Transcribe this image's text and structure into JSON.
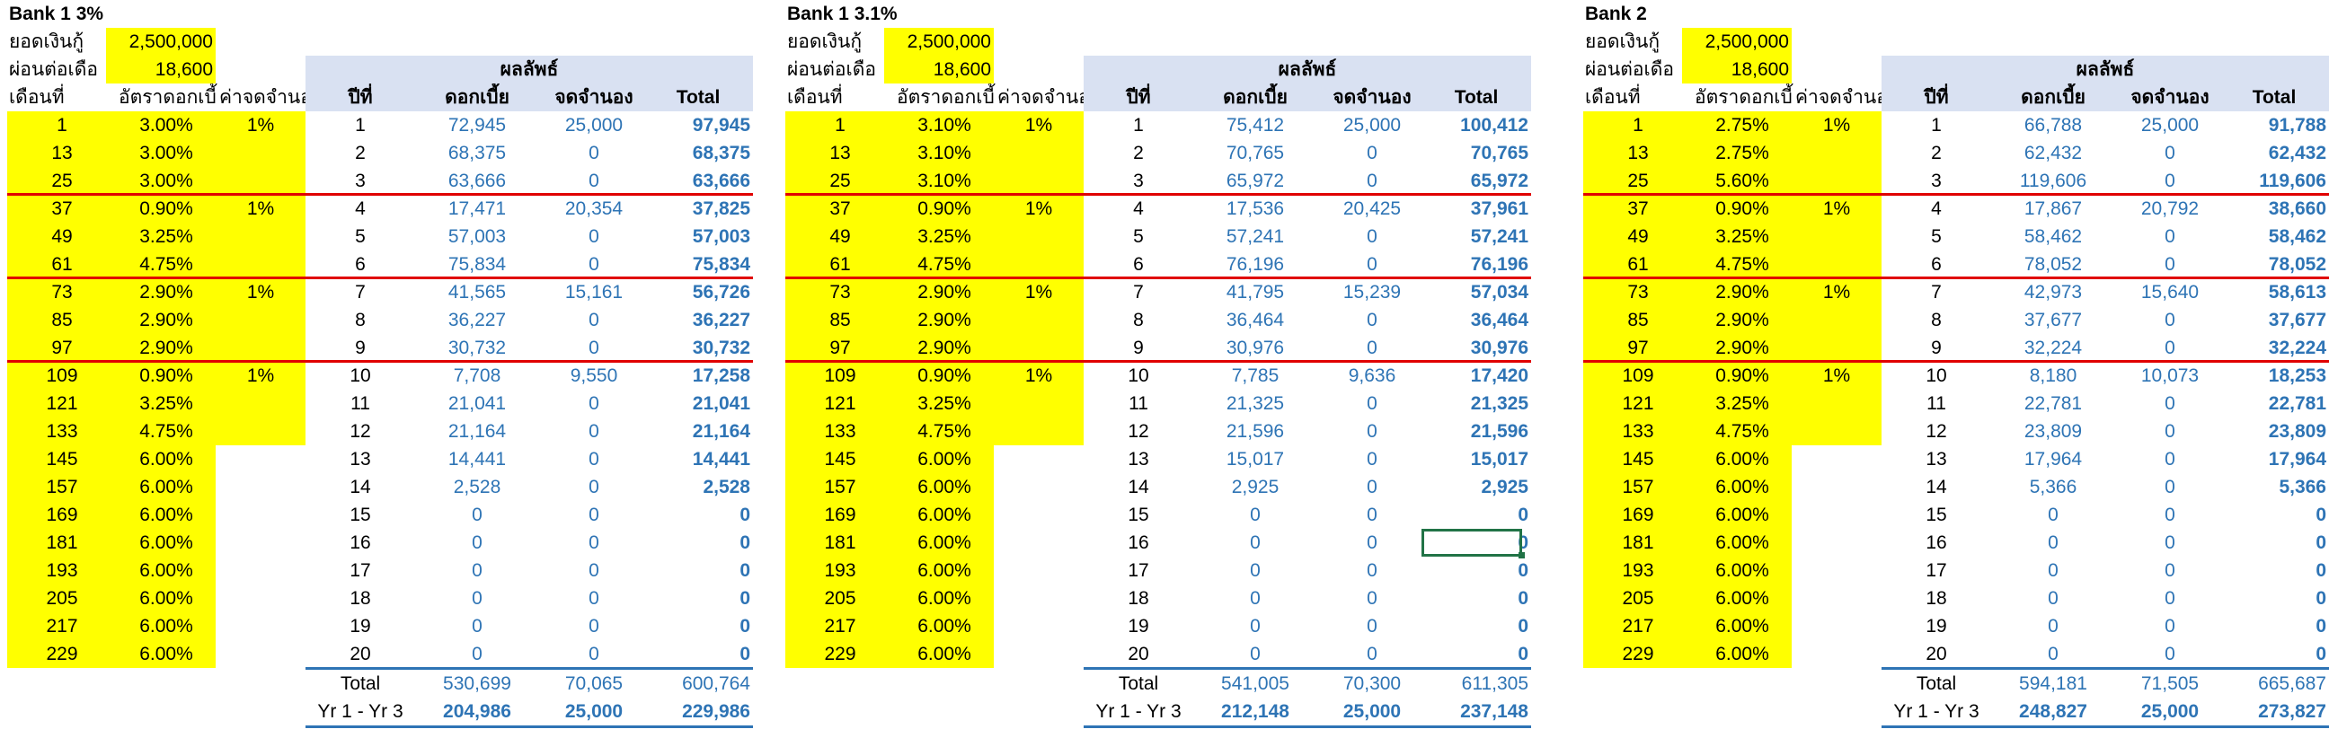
{
  "blocks": [
    {
      "title": "Bank 1 3%",
      "loan_label": "ยอดเงินกู้",
      "loan_value": "2,500,000",
      "pay_label": "ผ่อนต่อเดือ",
      "pay_value": "18,600",
      "result_header": "ผลลัพธ์",
      "col_month": "เดือนที่",
      "col_rate": "อัตราดอกเบี้",
      "col_fee": "ค่าจดจำนอง",
      "col_year": "ปีที่",
      "col_interest": "ดอกเบี้ย",
      "col_mortgage": "จดจำนอง",
      "col_total": "Total",
      "rate_rows": [
        {
          "month": "1",
          "rate": "3.00%",
          "fee": "1%"
        },
        {
          "month": "13",
          "rate": "3.00%",
          "fee": ""
        },
        {
          "month": "25",
          "rate": "3.00%",
          "fee": ""
        },
        {
          "month": "37",
          "rate": "0.90%",
          "fee": "1%"
        },
        {
          "month": "49",
          "rate": "3.25%",
          "fee": ""
        },
        {
          "month": "61",
          "rate": "4.75%",
          "fee": ""
        },
        {
          "month": "73",
          "rate": "2.90%",
          "fee": "1%"
        },
        {
          "month": "85",
          "rate": "2.90%",
          "fee": ""
        },
        {
          "month": "97",
          "rate": "2.90%",
          "fee": ""
        },
        {
          "month": "109",
          "rate": "0.90%",
          "fee": "1%"
        },
        {
          "month": "121",
          "rate": "3.25%",
          "fee": ""
        },
        {
          "month": "133",
          "rate": "4.75%",
          "fee": ""
        },
        {
          "month": "145",
          "rate": "6.00%",
          "fee": ""
        },
        {
          "month": "157",
          "rate": "6.00%",
          "fee": ""
        },
        {
          "month": "169",
          "rate": "6.00%",
          "fee": ""
        },
        {
          "month": "181",
          "rate": "6.00%",
          "fee": ""
        },
        {
          "month": "193",
          "rate": "6.00%",
          "fee": ""
        },
        {
          "month": "205",
          "rate": "6.00%",
          "fee": ""
        },
        {
          "month": "217",
          "rate": "6.00%",
          "fee": ""
        },
        {
          "month": "229",
          "rate": "6.00%",
          "fee": ""
        }
      ],
      "year_rows": [
        {
          "year": "1",
          "interest": "72,945",
          "mortgage": "25,000",
          "total": "97,945"
        },
        {
          "year": "2",
          "interest": "68,375",
          "mortgage": "0",
          "total": "68,375"
        },
        {
          "year": "3",
          "interest": "63,666",
          "mortgage": "0",
          "total": "63,666"
        },
        {
          "year": "4",
          "interest": "17,471",
          "mortgage": "20,354",
          "total": "37,825"
        },
        {
          "year": "5",
          "interest": "57,003",
          "mortgage": "0",
          "total": "57,003"
        },
        {
          "year": "6",
          "interest": "75,834",
          "mortgage": "0",
          "total": "75,834"
        },
        {
          "year": "7",
          "interest": "41,565",
          "mortgage": "15,161",
          "total": "56,726"
        },
        {
          "year": "8",
          "interest": "36,227",
          "mortgage": "0",
          "total": "36,227"
        },
        {
          "year": "9",
          "interest": "30,732",
          "mortgage": "0",
          "total": "30,732"
        },
        {
          "year": "10",
          "interest": "7,708",
          "mortgage": "9,550",
          "total": "17,258"
        },
        {
          "year": "11",
          "interest": "21,041",
          "mortgage": "0",
          "total": "21,041"
        },
        {
          "year": "12",
          "interest": "21,164",
          "mortgage": "0",
          "total": "21,164"
        },
        {
          "year": "13",
          "interest": "14,441",
          "mortgage": "0",
          "total": "14,441"
        },
        {
          "year": "14",
          "interest": "2,528",
          "mortgage": "0",
          "total": "2,528"
        },
        {
          "year": "15",
          "interest": "0",
          "mortgage": "0",
          "total": "0"
        },
        {
          "year": "16",
          "interest": "0",
          "mortgage": "0",
          "total": "0"
        },
        {
          "year": "17",
          "interest": "0",
          "mortgage": "0",
          "total": "0"
        },
        {
          "year": "18",
          "interest": "0",
          "mortgage": "0",
          "total": "0"
        },
        {
          "year": "19",
          "interest": "0",
          "mortgage": "0",
          "total": "0"
        },
        {
          "year": "20",
          "interest": "0",
          "mortgage": "0",
          "total": "0"
        }
      ],
      "total_row": {
        "label": "Total",
        "interest": "530,699",
        "mortgage": "70,065",
        "total": "600,764"
      },
      "yr_row": {
        "label": "Yr 1 - Yr 3",
        "interest": "204,986",
        "mortgage": "25,000",
        "total": "229,986"
      }
    },
    {
      "title": "Bank 1 3.1%",
      "loan_label": "ยอดเงินกู้",
      "loan_value": "2,500,000",
      "pay_label": "ผ่อนต่อเดือ",
      "pay_value": "18,600",
      "result_header": "ผลลัพธ์",
      "col_month": "เดือนที่",
      "col_rate": "อัตราดอกเบี้",
      "col_fee": "ค่าจดจำนอง",
      "col_year": "ปีที่",
      "col_interest": "ดอกเบี้ย",
      "col_mortgage": "จดจำนอง",
      "col_total": "Total",
      "rate_rows": [
        {
          "month": "1",
          "rate": "3.10%",
          "fee": "1%"
        },
        {
          "month": "13",
          "rate": "3.10%",
          "fee": ""
        },
        {
          "month": "25",
          "rate": "3.10%",
          "fee": ""
        },
        {
          "month": "37",
          "rate": "0.90%",
          "fee": "1%"
        },
        {
          "month": "49",
          "rate": "3.25%",
          "fee": ""
        },
        {
          "month": "61",
          "rate": "4.75%",
          "fee": ""
        },
        {
          "month": "73",
          "rate": "2.90%",
          "fee": "1%"
        },
        {
          "month": "85",
          "rate": "2.90%",
          "fee": ""
        },
        {
          "month": "97",
          "rate": "2.90%",
          "fee": ""
        },
        {
          "month": "109",
          "rate": "0.90%",
          "fee": "1%"
        },
        {
          "month": "121",
          "rate": "3.25%",
          "fee": ""
        },
        {
          "month": "133",
          "rate": "4.75%",
          "fee": ""
        },
        {
          "month": "145",
          "rate": "6.00%",
          "fee": ""
        },
        {
          "month": "157",
          "rate": "6.00%",
          "fee": ""
        },
        {
          "month": "169",
          "rate": "6.00%",
          "fee": ""
        },
        {
          "month": "181",
          "rate": "6.00%",
          "fee": ""
        },
        {
          "month": "193",
          "rate": "6.00%",
          "fee": ""
        },
        {
          "month": "205",
          "rate": "6.00%",
          "fee": ""
        },
        {
          "month": "217",
          "rate": "6.00%",
          "fee": ""
        },
        {
          "month": "229",
          "rate": "6.00%",
          "fee": ""
        }
      ],
      "year_rows": [
        {
          "year": "1",
          "interest": "75,412",
          "mortgage": "25,000",
          "total": "100,412"
        },
        {
          "year": "2",
          "interest": "70,765",
          "mortgage": "0",
          "total": "70,765"
        },
        {
          "year": "3",
          "interest": "65,972",
          "mortgage": "0",
          "total": "65,972"
        },
        {
          "year": "4",
          "interest": "17,536",
          "mortgage": "20,425",
          "total": "37,961"
        },
        {
          "year": "5",
          "interest": "57,241",
          "mortgage": "0",
          "total": "57,241"
        },
        {
          "year": "6",
          "interest": "76,196",
          "mortgage": "0",
          "total": "76,196"
        },
        {
          "year": "7",
          "interest": "41,795",
          "mortgage": "15,239",
          "total": "57,034"
        },
        {
          "year": "8",
          "interest": "36,464",
          "mortgage": "0",
          "total": "36,464"
        },
        {
          "year": "9",
          "interest": "30,976",
          "mortgage": "0",
          "total": "30,976"
        },
        {
          "year": "10",
          "interest": "7,785",
          "mortgage": "9,636",
          "total": "17,420"
        },
        {
          "year": "11",
          "interest": "21,325",
          "mortgage": "0",
          "total": "21,325"
        },
        {
          "year": "12",
          "interest": "21,596",
          "mortgage": "0",
          "total": "21,596"
        },
        {
          "year": "13",
          "interest": "15,017",
          "mortgage": "0",
          "total": "15,017"
        },
        {
          "year": "14",
          "interest": "2,925",
          "mortgage": "0",
          "total": "2,925"
        },
        {
          "year": "15",
          "interest": "0",
          "mortgage": "0",
          "total": "0"
        },
        {
          "year": "16",
          "interest": "0",
          "mortgage": "0",
          "total": "0"
        },
        {
          "year": "17",
          "interest": "0",
          "mortgage": "0",
          "total": "0"
        },
        {
          "year": "18",
          "interest": "0",
          "mortgage": "0",
          "total": "0"
        },
        {
          "year": "19",
          "interest": "0",
          "mortgage": "0",
          "total": "0"
        },
        {
          "year": "20",
          "interest": "0",
          "mortgage": "0",
          "total": "0"
        }
      ],
      "total_row": {
        "label": "Total",
        "interest": "541,005",
        "mortgage": "70,300",
        "total": "611,305"
      },
      "yr_row": {
        "label": "Yr 1 - Yr 3",
        "interest": "212,148",
        "mortgage": "25,000",
        "total": "237,148"
      }
    },
    {
      "title": "Bank 2",
      "loan_label": "ยอดเงินกู้",
      "loan_value": "2,500,000",
      "pay_label": "ผ่อนต่อเดือ",
      "pay_value": "18,600",
      "result_header": "ผลลัพธ์",
      "col_month": "เดือนที่",
      "col_rate": "อัตราดอกเบี้",
      "col_fee": "ค่าจดจำนอง",
      "col_year": "ปีที่",
      "col_interest": "ดอกเบี้ย",
      "col_mortgage": "จดจำนอง",
      "col_total": "Total",
      "rate_rows": [
        {
          "month": "1",
          "rate": "2.75%",
          "fee": "1%"
        },
        {
          "month": "13",
          "rate": "2.75%",
          "fee": ""
        },
        {
          "month": "25",
          "rate": "5.60%",
          "fee": ""
        },
        {
          "month": "37",
          "rate": "0.90%",
          "fee": "1%"
        },
        {
          "month": "49",
          "rate": "3.25%",
          "fee": ""
        },
        {
          "month": "61",
          "rate": "4.75%",
          "fee": ""
        },
        {
          "month": "73",
          "rate": "2.90%",
          "fee": "1%"
        },
        {
          "month": "85",
          "rate": "2.90%",
          "fee": ""
        },
        {
          "month": "97",
          "rate": "2.90%",
          "fee": ""
        },
        {
          "month": "109",
          "rate": "0.90%",
          "fee": "1%"
        },
        {
          "month": "121",
          "rate": "3.25%",
          "fee": ""
        },
        {
          "month": "133",
          "rate": "4.75%",
          "fee": ""
        },
        {
          "month": "145",
          "rate": "6.00%",
          "fee": ""
        },
        {
          "month": "157",
          "rate": "6.00%",
          "fee": ""
        },
        {
          "month": "169",
          "rate": "6.00%",
          "fee": ""
        },
        {
          "month": "181",
          "rate": "6.00%",
          "fee": ""
        },
        {
          "month": "193",
          "rate": "6.00%",
          "fee": ""
        },
        {
          "month": "205",
          "rate": "6.00%",
          "fee": ""
        },
        {
          "month": "217",
          "rate": "6.00%",
          "fee": ""
        },
        {
          "month": "229",
          "rate": "6.00%",
          "fee": ""
        }
      ],
      "year_rows": [
        {
          "year": "1",
          "interest": "66,788",
          "mortgage": "25,000",
          "total": "91,788"
        },
        {
          "year": "2",
          "interest": "62,432",
          "mortgage": "0",
          "total": "62,432"
        },
        {
          "year": "3",
          "interest": "119,606",
          "mortgage": "0",
          "total": "119,606"
        },
        {
          "year": "4",
          "interest": "17,867",
          "mortgage": "20,792",
          "total": "38,660"
        },
        {
          "year": "5",
          "interest": "58,462",
          "mortgage": "0",
          "total": "58,462"
        },
        {
          "year": "6",
          "interest": "78,052",
          "mortgage": "0",
          "total": "78,052"
        },
        {
          "year": "7",
          "interest": "42,973",
          "mortgage": "15,640",
          "total": "58,613"
        },
        {
          "year": "8",
          "interest": "37,677",
          "mortgage": "0",
          "total": "37,677"
        },
        {
          "year": "9",
          "interest": "32,224",
          "mortgage": "0",
          "total": "32,224"
        },
        {
          "year": "10",
          "interest": "8,180",
          "mortgage": "10,073",
          "total": "18,253"
        },
        {
          "year": "11",
          "interest": "22,781",
          "mortgage": "0",
          "total": "22,781"
        },
        {
          "year": "12",
          "interest": "23,809",
          "mortgage": "0",
          "total": "23,809"
        },
        {
          "year": "13",
          "interest": "17,964",
          "mortgage": "0",
          "total": "17,964"
        },
        {
          "year": "14",
          "interest": "5,366",
          "mortgage": "0",
          "total": "5,366"
        },
        {
          "year": "15",
          "interest": "0",
          "mortgage": "0",
          "total": "0"
        },
        {
          "year": "16",
          "interest": "0",
          "mortgage": "0",
          "total": "0"
        },
        {
          "year": "17",
          "interest": "0",
          "mortgage": "0",
          "total": "0"
        },
        {
          "year": "18",
          "interest": "0",
          "mortgage": "0",
          "total": "0"
        },
        {
          "year": "19",
          "interest": "0",
          "mortgage": "0",
          "total": "0"
        },
        {
          "year": "20",
          "interest": "0",
          "mortgage": "0",
          "total": "0"
        }
      ],
      "total_row": {
        "label": "Total",
        "interest": "594,181",
        "mortgage": "71,505",
        "total": "665,687"
      },
      "yr_row": {
        "label": "Yr 1 - Yr 3",
        "interest": "248,827",
        "mortgage": "25,000",
        "total": "273,827"
      }
    }
  ],
  "colors": {
    "input_fill": "#ffff00",
    "header_fill": "#d9e1f2",
    "value_text": "#2e74b5",
    "group_line": "#e00000",
    "total_line": "#2e74b5",
    "selection": "#217346"
  }
}
